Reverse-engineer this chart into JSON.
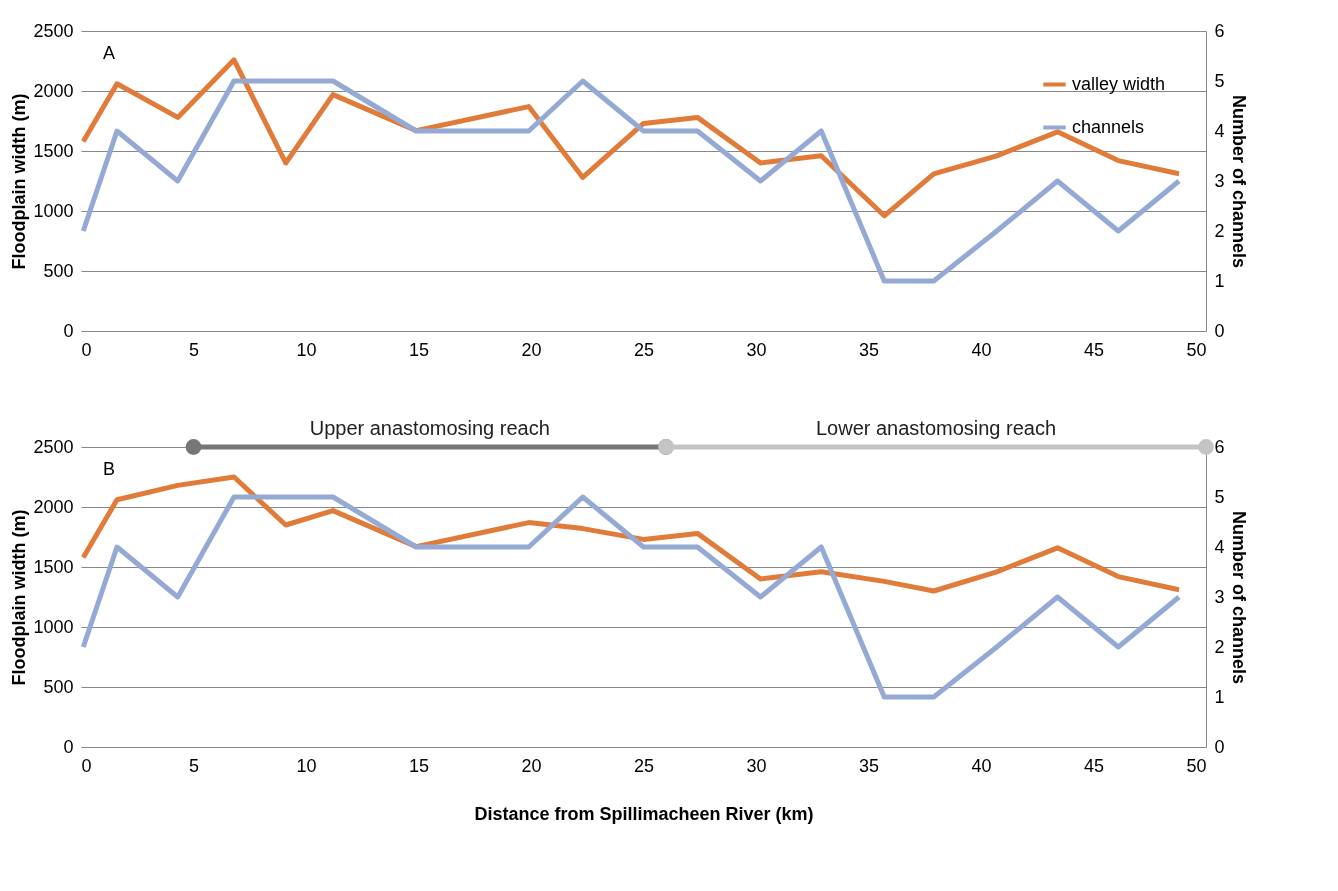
{
  "chart_data": [
    {
      "type": "line",
      "annotations": [
        "A"
      ],
      "ylabel": "Floodplain width (m)",
      "y2label": "Number of channels",
      "x": [
        0.1,
        1.6,
        4.3,
        6.8,
        9.1,
        11.2,
        14.9,
        19.9,
        22.3,
        25,
        27.4,
        30.2,
        32.9,
        35.7,
        37.9,
        40.7,
        43.4,
        46.1,
        48.8
      ],
      "series": [
        {
          "name": "valley width",
          "color": "#e07b39",
          "values": [
            1580,
            2060,
            1780,
            2260,
            1400,
            1970,
            1670,
            1870,
            1280,
            1730,
            1780,
            1400,
            1460,
            960,
            1310,
            1460,
            1660,
            1420,
            1310
          ]
        },
        {
          "name": "channels",
          "color": "#94aad4",
          "axis": "y2",
          "values": [
            2,
            4,
            3,
            5,
            5,
            5,
            4,
            4,
            5,
            4,
            4,
            3,
            4,
            1,
            1,
            2,
            3,
            2,
            3
          ]
        }
      ],
      "xlim": [
        0,
        50
      ],
      "xticks": [
        0,
        5,
        10,
        15,
        20,
        25,
        30,
        35,
        40,
        45,
        50
      ],
      "ylim": [
        0,
        2500
      ],
      "yticks": [
        0,
        500,
        1000,
        1500,
        2000,
        2500
      ],
      "y2lim": [
        0,
        6
      ],
      "y2ticks": [
        0,
        1,
        2,
        3,
        4,
        5,
        6
      ],
      "grid": "y",
      "legend": "top right"
    },
    {
      "type": "line",
      "annotations": [
        "B"
      ],
      "xlabel": "Distance from Spillimacheen River (km)",
      "ylabel": "Floodplain width (m)",
      "y2label": "Number of channels",
      "x": [
        0.1,
        1.6,
        4.3,
        6.8,
        9.1,
        11.2,
        14.9,
        19.9,
        22.3,
        25,
        27.4,
        30.2,
        32.9,
        35.7,
        37.9,
        40.7,
        43.4,
        46.1,
        48.8
      ],
      "series": [
        {
          "color": "#e07b39",
          "values": [
            1580,
            2060,
            2180,
            2250,
            1850,
            1970,
            1670,
            1870,
            1820,
            1730,
            1780,
            1400,
            1460,
            1380,
            1300,
            1460,
            1660,
            1420,
            1310
          ]
        },
        {
          "color": "#94aad4",
          "axis": "y2",
          "values": [
            2,
            4,
            3,
            5,
            5,
            5,
            4,
            4,
            5,
            4,
            4,
            3,
            4,
            1,
            1,
            2,
            3,
            2,
            3
          ]
        },
        {
          "name": "Upper anastomosing reach",
          "color": "#767676",
          "marker": "circle",
          "x": [
            5,
            26
          ],
          "values": [
            2500,
            2500
          ]
        },
        {
          "name": "Lower anastomosing reach",
          "color": "#c4c4c4",
          "marker": "circle",
          "x": [
            26,
            50
          ],
          "values": [
            2500,
            2500
          ]
        }
      ],
      "xlim": [
        0,
        50
      ],
      "xticks": [
        0,
        5,
        10,
        15,
        20,
        25,
        30,
        35,
        40,
        45,
        50
      ],
      "ylim": [
        0,
        2500
      ],
      "yticks": [
        0,
        500,
        1000,
        1500,
        2000,
        2500
      ],
      "y2lim": [
        0,
        6
      ],
      "y2ticks": [
        0,
        1,
        2,
        3,
        4,
        5,
        6
      ],
      "grid": "y",
      "legend": false
    }
  ]
}
